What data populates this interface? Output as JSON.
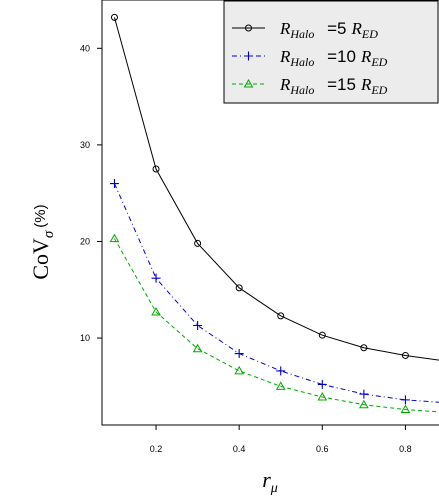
{
  "chart_data": {
    "type": "line",
    "xlabel_main": "r",
    "xlabel_sub": "μ",
    "ylabel_main": "CoV",
    "ylabel_sub": "σ",
    "ylabel_unit": "(%)",
    "x": [
      0.1,
      0.2,
      0.3,
      0.4,
      0.5,
      0.6,
      0.7,
      0.8,
      0.9
    ],
    "x_ticks": [
      0.2,
      0.4,
      0.6,
      0.8
    ],
    "x_tick_labels": [
      "0.2",
      "0.4",
      "0.6",
      "0.8"
    ],
    "y_ticks": [
      10,
      20,
      30,
      40
    ],
    "y_tick_labels": [
      "10",
      "20",
      "30",
      "40"
    ],
    "xlim": [
      0.07,
      0.9
    ],
    "ylim": [
      1,
      45
    ],
    "legend_position": "top-right",
    "grid": false,
    "series": [
      {
        "name_main": "R",
        "name_sub": "Halo",
        "name_eq": " =5",
        "name_unit": "R",
        "name_unit_sub": "ED",
        "color": "#000000",
        "line_style": "solid",
        "marker": "circle",
        "values": [
          43.2,
          27.5,
          19.8,
          15.2,
          12.3,
          10.3,
          9.0,
          8.2,
          7.6
        ]
      },
      {
        "name_main": "R",
        "name_sub": "Halo",
        "name_eq": " =10",
        "name_unit": "R",
        "name_unit_sub": "ED",
        "color": "#0000cc",
        "line_style": "dashdot",
        "marker": "plus",
        "values": [
          26.0,
          16.2,
          11.3,
          8.4,
          6.6,
          5.2,
          4.2,
          3.6,
          3.3
        ]
      },
      {
        "name_main": "R",
        "name_sub": "Halo",
        "name_eq": " =15",
        "name_unit": "R",
        "name_unit_sub": "ED",
        "color": "#00aa00",
        "line_style": "dashed",
        "marker": "triangle",
        "values": [
          20.3,
          12.7,
          8.9,
          6.6,
          5.0,
          3.9,
          3.1,
          2.6,
          2.3
        ]
      }
    ]
  }
}
